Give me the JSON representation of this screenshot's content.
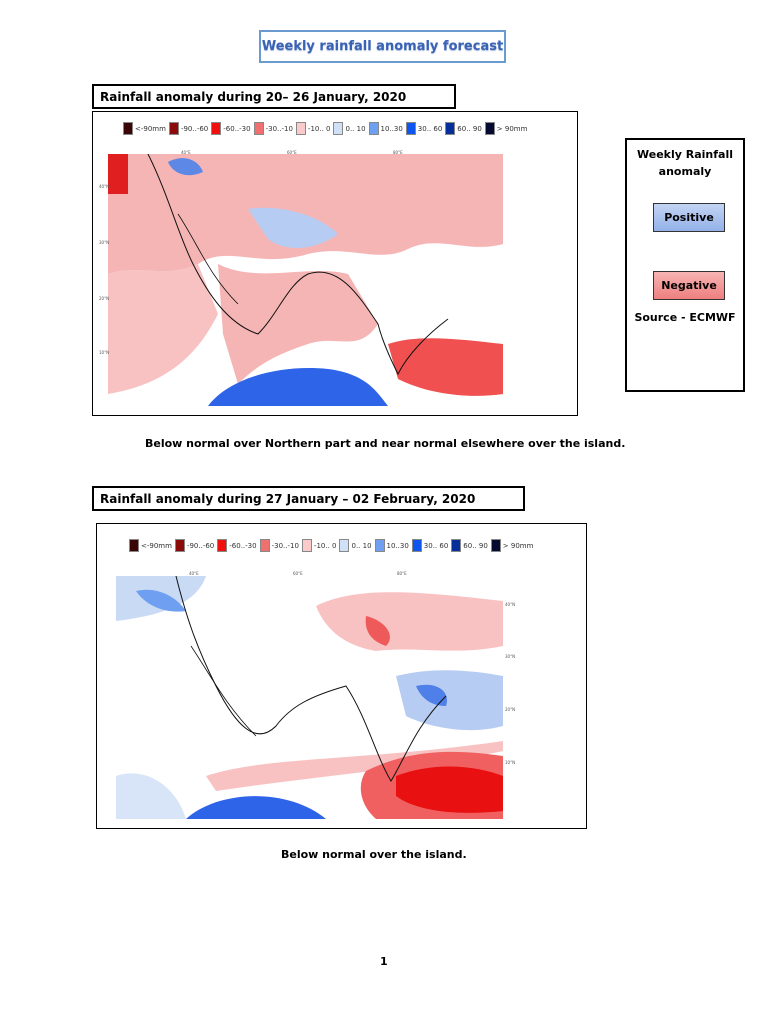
{
  "title": "Weekly rainfall anomaly forecast",
  "legend_items": [
    {
      "label": "<-90mm",
      "color": "#3a0505"
    },
    {
      "label": "-90..-60",
      "color": "#8b0a0a"
    },
    {
      "label": "-60..-30",
      "color": "#f01010"
    },
    {
      "label": "-30..-10",
      "color": "#f07070"
    },
    {
      "label": "-10.. 0",
      "color": "#fbcaca"
    },
    {
      "label": "0.. 10",
      "color": "#cfe0f7"
    },
    {
      "label": "10..30",
      "color": "#6f9ff0"
    },
    {
      "label": "30.. 60",
      "color": "#0f55f0"
    },
    {
      "label": "60.. 90",
      "color": "#072f9a"
    },
    {
      "label": "> 90mm",
      "color": "#050a30"
    }
  ],
  "map_ticks": {
    "lon": [
      "40°E",
      "60°E",
      "80°E"
    ],
    "lat": [
      "40°N",
      "30°N",
      "20°N",
      "10°N"
    ]
  },
  "week1": {
    "header": "Rainfall anomaly during 20– 26 January, 2020",
    "caption": "Below normal over Northern part and near normal elsewhere over the island."
  },
  "week2": {
    "header": "Rainfall anomaly during 27 January – 02 February, 2020",
    "caption": "Below normal over the island."
  },
  "side_panel": {
    "title_line1": "Weekly Rainfall",
    "title_line2": "anomaly",
    "positive": "Positive",
    "negative": "Negative",
    "source": "Source - ECMWF",
    "positive_color": "#a9c1ee",
    "negative_color": "#f08a8a"
  },
  "page_number": "1"
}
